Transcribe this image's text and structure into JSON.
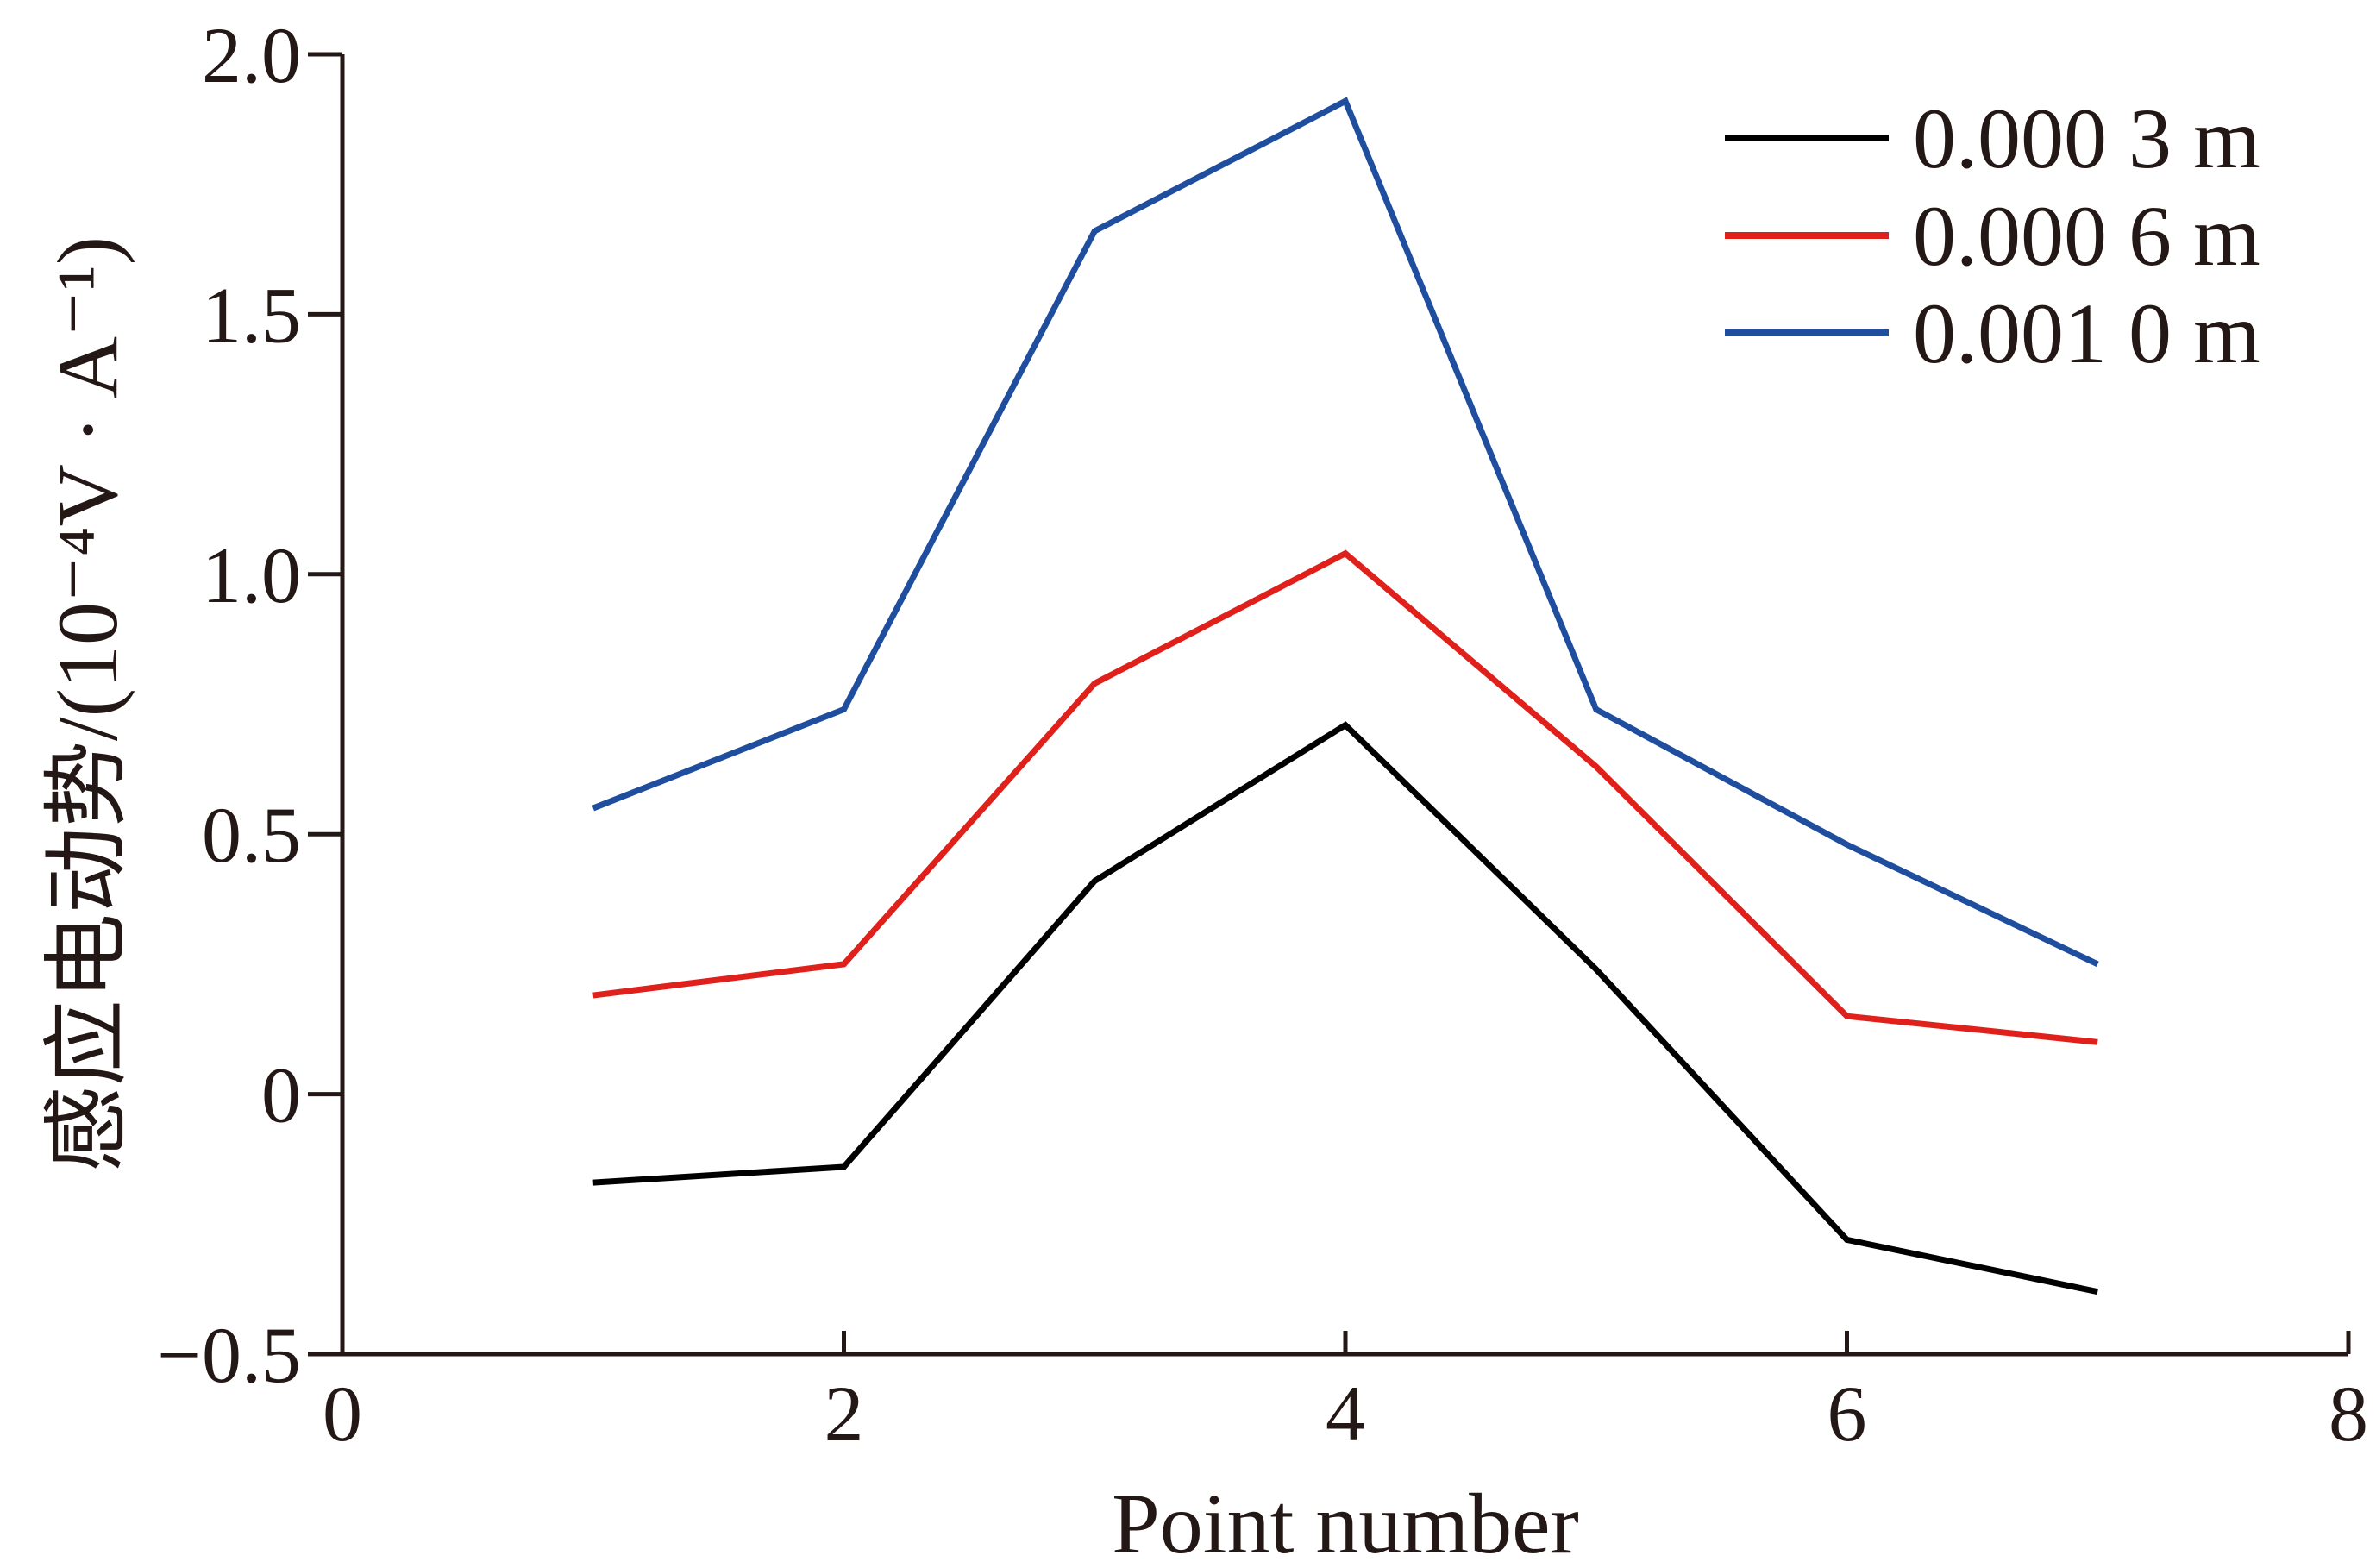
{
  "chart_data": {
    "type": "line",
    "xlabel": "Point number",
    "ylabel": "感应电动势/(10⁻⁴V · A⁻¹)",
    "xlim": [
      0,
      8
    ],
    "ylim": [
      -0.5,
      2.0
    ],
    "x_ticks": [
      0,
      2,
      4,
      6,
      8
    ],
    "x_tick_labels": [
      "0",
      "2",
      "4",
      "6",
      "8"
    ],
    "y_ticks": [
      -0.5,
      0,
      0.5,
      1.0,
      1.5,
      2.0
    ],
    "y_tick_labels": [
      "−0.5",
      "0",
      "0.5",
      "1.0",
      "1.5",
      "2.0"
    ],
    "grid": false,
    "legend_position": "top-right",
    "x": [
      1,
      2,
      3,
      4,
      5,
      6,
      7
    ],
    "series": [
      {
        "name": "0.000 3 m",
        "color": "#000000",
        "values": [
          -0.17,
          -0.14,
          0.41,
          0.71,
          0.24,
          -0.28,
          -0.38
        ]
      },
      {
        "name": "0.000 6 m",
        "color": "#e0201b",
        "values": [
          0.19,
          0.25,
          0.79,
          1.04,
          0.63,
          0.15,
          0.1
        ]
      },
      {
        "name": "0.001 0 m",
        "color": "#1f4e9f",
        "values": [
          0.55,
          0.74,
          1.66,
          1.91,
          0.74,
          0.48,
          0.25
        ]
      }
    ]
  }
}
